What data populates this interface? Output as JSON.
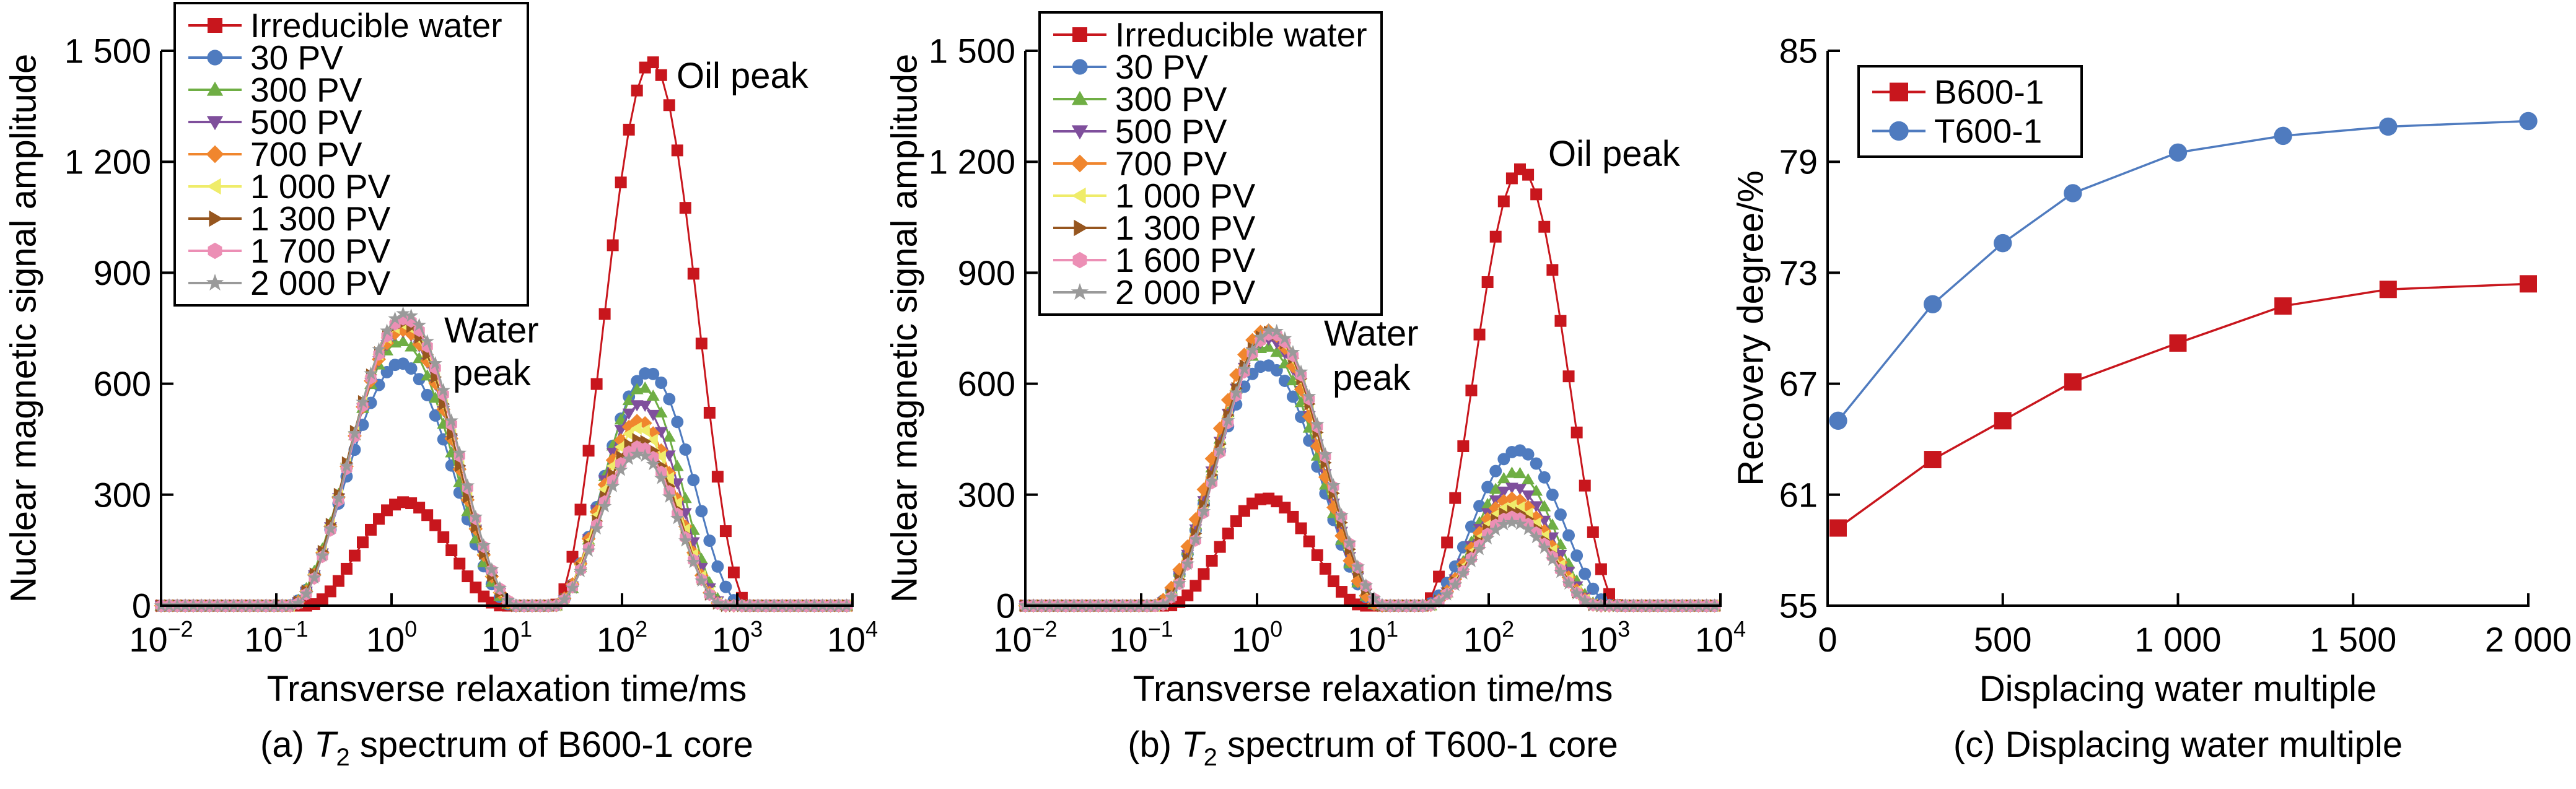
{
  "chart_data": [
    {
      "type": "line",
      "panel": "a",
      "caption": {
        "prefix": "(a) ",
        "italic": "T",
        "sub": "2",
        "rest": " spectrum of B600-1 core"
      },
      "xlabel": "Transverse relaxation time/ms",
      "ylabel": "Nuclear magnetic signal amplitude",
      "x_scale": "log",
      "xlim": [
        0.01,
        10000
      ],
      "ylim": [
        0,
        1500
      ],
      "x_ticks": [
        {
          "base": "10",
          "exp": "−2"
        },
        {
          "base": "10",
          "exp": "−1"
        },
        {
          "base": "10",
          "exp": "0"
        },
        {
          "base": "10",
          "exp": "1"
        },
        {
          "base": "10",
          "exp": "2"
        },
        {
          "base": "10",
          "exp": "3"
        },
        {
          "base": "10",
          "exp": "4"
        }
      ],
      "y_ticks": [
        {
          "value": 0,
          "label": "0"
        },
        {
          "value": 300,
          "label": "300"
        },
        {
          "value": 600,
          "label": "600"
        },
        {
          "value": 900,
          "label": "900"
        },
        {
          "value": 1200,
          "label": "1 200"
        },
        {
          "value": 1500,
          "label": "1 500"
        }
      ],
      "grid": false,
      "legend_position": "top-left",
      "annotations": {
        "oil": "Oil peak",
        "water1": "Water",
        "water2": "peak"
      },
      "series": [
        {
          "name": "Irreducible water",
          "color": "#c8161d",
          "marker": "square",
          "water_peak": {
            "t2_ms": 1.3,
            "amplitude": 280
          },
          "oil_peak": {
            "t2_ms": 180,
            "amplitude": 1470
          }
        },
        {
          "name": "30 PV",
          "color": "#4f7bbf",
          "marker": "circle",
          "water_peak": {
            "t2_ms": 1.2,
            "amplitude": 655
          },
          "oil_peak": {
            "t2_ms": 170,
            "amplitude": 630
          }
        },
        {
          "name": "300 PV",
          "color": "#6fae44",
          "marker": "triangle-up",
          "water_peak": {
            "t2_ms": 1.2,
            "amplitude": 715
          },
          "oil_peak": {
            "t2_ms": 150,
            "amplitude": 590
          }
        },
        {
          "name": "500 PV",
          "color": "#7f4f9c",
          "marker": "triangle-down",
          "water_peak": {
            "t2_ms": 1.25,
            "amplitude": 740
          },
          "oil_peak": {
            "t2_ms": 145,
            "amplitude": 545
          }
        },
        {
          "name": "700 PV",
          "color": "#f0862e",
          "marker": "diamond",
          "water_peak": {
            "t2_ms": 1.25,
            "amplitude": 745
          },
          "oil_peak": {
            "t2_ms": 140,
            "amplitude": 500
          }
        },
        {
          "name": "1 000 PV",
          "color": "#efec6a",
          "marker": "triangle-left",
          "water_peak": {
            "t2_ms": 1.25,
            "amplitude": 760
          },
          "oil_peak": {
            "t2_ms": 140,
            "amplitude": 480
          }
        },
        {
          "name": "1 300 PV",
          "color": "#96561f",
          "marker": "triangle-right",
          "water_peak": {
            "t2_ms": 1.25,
            "amplitude": 765
          },
          "oil_peak": {
            "t2_ms": 140,
            "amplitude": 450
          }
        },
        {
          "name": "1 700 PV",
          "color": "#ec8fb5",
          "marker": "hexagon",
          "water_peak": {
            "t2_ms": 1.3,
            "amplitude": 775
          },
          "oil_peak": {
            "t2_ms": 140,
            "amplitude": 430
          }
        },
        {
          "name": "2 000 PV",
          "color": "#9a9a9a",
          "marker": "star",
          "water_peak": {
            "t2_ms": 1.3,
            "amplitude": 790
          },
          "oil_peak": {
            "t2_ms": 140,
            "amplitude": 410
          }
        }
      ]
    },
    {
      "type": "line",
      "panel": "b",
      "caption": {
        "prefix": "(b) ",
        "italic": "T",
        "sub": "2",
        "rest": " spectrum of T600-1 core"
      },
      "xlabel": "Transverse relaxation time/ms",
      "ylabel": "Nuclear magnetic signal amplitude",
      "x_scale": "log",
      "xlim": [
        0.01,
        10000
      ],
      "ylim": [
        0,
        1500
      ],
      "x_ticks": [
        {
          "base": "10",
          "exp": "−2"
        },
        {
          "base": "10",
          "exp": "−1"
        },
        {
          "base": "10",
          "exp": "0"
        },
        {
          "base": "10",
          "exp": "1"
        },
        {
          "base": "10",
          "exp": "2"
        },
        {
          "base": "10",
          "exp": "3"
        },
        {
          "base": "10",
          "exp": "4"
        }
      ],
      "y_ticks": [
        {
          "value": 0,
          "label": "0"
        },
        {
          "value": 300,
          "label": "300"
        },
        {
          "value": 600,
          "label": "600"
        },
        {
          "value": 900,
          "label": "900"
        },
        {
          "value": 1200,
          "label": "1 200"
        },
        {
          "value": 1500,
          "label": "1 500"
        }
      ],
      "grid": false,
      "legend_position": "top-left",
      "annotations": {
        "oil": "Oil peak",
        "water1": "Water",
        "water2": "peak"
      },
      "series": [
        {
          "name": "Irreducible water",
          "color": "#c8161d",
          "marker": "square",
          "water_peak": {
            "t2_ms": 1.2,
            "amplitude": 290
          },
          "oil_peak": {
            "t2_ms": 190,
            "amplitude": 1180
          }
        },
        {
          "name": "30 PV",
          "color": "#4f7bbf",
          "marker": "circle",
          "water_peak": {
            "t2_ms": 1.2,
            "amplitude": 650
          },
          "oil_peak": {
            "t2_ms": 180,
            "amplitude": 420
          }
        },
        {
          "name": "300 PV",
          "color": "#6fae44",
          "marker": "triangle-up",
          "water_peak": {
            "t2_ms": 1.2,
            "amplitude": 700
          },
          "oil_peak": {
            "t2_ms": 170,
            "amplitude": 360
          }
        },
        {
          "name": "500 PV",
          "color": "#7f4f9c",
          "marker": "triangle-down",
          "water_peak": {
            "t2_ms": 1.25,
            "amplitude": 720
          },
          "oil_peak": {
            "t2_ms": 165,
            "amplitude": 320
          }
        },
        {
          "name": "700 PV",
          "color": "#f0862e",
          "marker": "diamond",
          "water_peak": {
            "t2_ms": 1.2,
            "amplitude": 745
          },
          "oil_peak": {
            "t2_ms": 160,
            "amplitude": 290
          }
        },
        {
          "name": "1 000 PV",
          "color": "#efec6a",
          "marker": "triangle-left",
          "water_peak": {
            "t2_ms": 1.3,
            "amplitude": 735
          },
          "oil_peak": {
            "t2_ms": 160,
            "amplitude": 270
          }
        },
        {
          "name": "1 300 PV",
          "color": "#96561f",
          "marker": "triangle-right",
          "water_peak": {
            "t2_ms": 1.3,
            "amplitude": 740
          },
          "oil_peak": {
            "t2_ms": 160,
            "amplitude": 255
          }
        },
        {
          "name": "1 600 PV",
          "color": "#ec8fb5",
          "marker": "hexagon",
          "water_peak": {
            "t2_ms": 1.35,
            "amplitude": 735
          },
          "oil_peak": {
            "t2_ms": 160,
            "amplitude": 240
          }
        },
        {
          "name": "2 000 PV",
          "color": "#9a9a9a",
          "marker": "star",
          "water_peak": {
            "t2_ms": 1.35,
            "amplitude": 745
          },
          "oil_peak": {
            "t2_ms": 160,
            "amplitude": 225
          }
        }
      ]
    },
    {
      "type": "line",
      "panel": "c",
      "caption": {
        "prefix": "(c) Displacing water multiple",
        "italic": "",
        "sub": "",
        "rest": ""
      },
      "xlabel": "Displacing water multiple",
      "ylabel": "Recovery degree/%",
      "xlim": [
        0,
        2000
      ],
      "ylim": [
        55,
        85
      ],
      "x_ticks": [
        {
          "value": 0,
          "label": "0"
        },
        {
          "value": 500,
          "label": "500"
        },
        {
          "value": 1000,
          "label": "1 000"
        },
        {
          "value": 1500,
          "label": "1 500"
        },
        {
          "value": 2000,
          "label": "2 000"
        }
      ],
      "y_ticks": [
        {
          "value": 55,
          "label": "55"
        },
        {
          "value": 61,
          "label": "61"
        },
        {
          "value": 67,
          "label": "67"
        },
        {
          "value": 73,
          "label": "73"
        },
        {
          "value": 79,
          "label": "79"
        },
        {
          "value": 85,
          "label": "85"
        }
      ],
      "grid": false,
      "legend_position": "top-left",
      "x": [
        30,
        300,
        500,
        700,
        1000,
        1300,
        1600,
        2000
      ],
      "series": [
        {
          "name": "B600-1",
          "color": "#c8161d",
          "marker": "square",
          "values": [
            59.2,
            62.9,
            65.0,
            67.1,
            69.2,
            71.2,
            72.1,
            72.4
          ]
        },
        {
          "name": "T600-1",
          "color": "#4f7bbf",
          "marker": "circle",
          "values": [
            65.0,
            71.3,
            74.6,
            77.3,
            79.5,
            80.4,
            80.9,
            81.2
          ]
        }
      ]
    }
  ]
}
